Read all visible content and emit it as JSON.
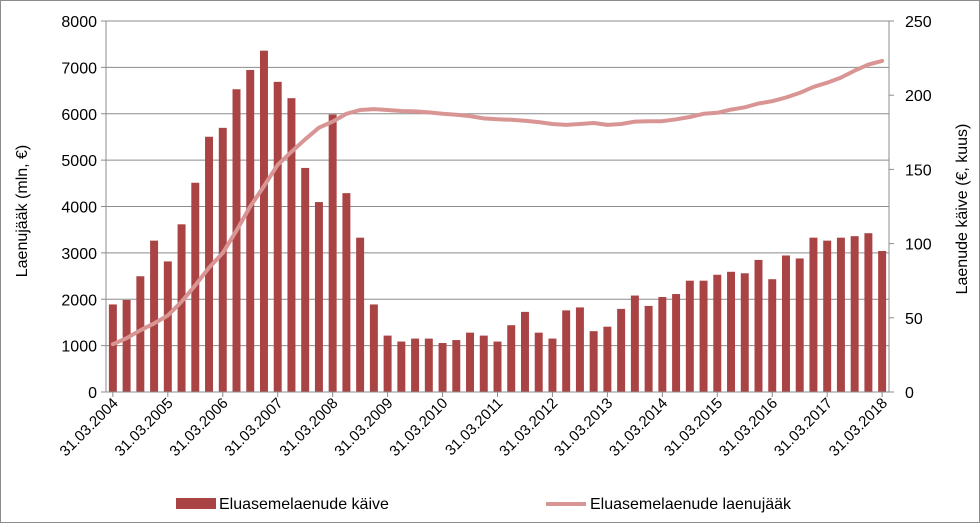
{
  "chart_data": {
    "type": "bar+line",
    "title": "",
    "y_left_label": "Laenujääk (mln, €)",
    "y_right_label": "Laenude käive (€, kuus)",
    "y_left_range": [
      0,
      8000
    ],
    "y_left_ticks": [
      "0",
      "1000",
      "2000",
      "3000",
      "4000",
      "5000",
      "6000",
      "7000",
      "8000"
    ],
    "y_right_range": [
      0,
      250
    ],
    "y_right_ticks": [
      "0",
      "50",
      "100",
      "150",
      "200",
      "250"
    ],
    "grid": true,
    "x_tick_labels": [
      "31.03.2004",
      "31.03.2005",
      "31.03.2006",
      "31.03.2007",
      "31.03.2008",
      "31.03.2009",
      "31.03.2010",
      "31.03.2011",
      "31.03.2012",
      "31.03.2013",
      "31.03.2014",
      "31.03.2015",
      "31.03.2016",
      "31.03.2017",
      "31.03.2018"
    ],
    "x_tick_every_n_points": 4,
    "legend_position": "bottom",
    "series": [
      {
        "name": "Eluasemelaenude käive",
        "type": "bar",
        "axis": "right",
        "color": "#a94344",
        "values": [
          59,
          62,
          78,
          102,
          88,
          113,
          141,
          172,
          178,
          204,
          217,
          230,
          209,
          198,
          151,
          128,
          187,
          134,
          104,
          59,
          38,
          34,
          36,
          36,
          33,
          35,
          40,
          38,
          34,
          45,
          54,
          40,
          36,
          55,
          57,
          41,
          44,
          56,
          65,
          58,
          64,
          66,
          75,
          75,
          79,
          81,
          80,
          89,
          76,
          92,
          90,
          104,
          102,
          104,
          105,
          107,
          95
        ]
      },
      {
        "name": "Eluasemelaenude laenujääk",
        "type": "line",
        "axis": "left",
        "color": "#d99594",
        "values": [
          1030,
          1160,
          1330,
          1480,
          1650,
          1950,
          2300,
          2680,
          3000,
          3480,
          4000,
          4440,
          4900,
          5180,
          5450,
          5700,
          5830,
          6000,
          6080,
          6100,
          6080,
          6060,
          6050,
          6030,
          6000,
          5980,
          5950,
          5900,
          5880,
          5870,
          5850,
          5820,
          5780,
          5760,
          5780,
          5800,
          5760,
          5780,
          5830,
          5840,
          5840,
          5880,
          5930,
          6000,
          6020,
          6090,
          6140,
          6220,
          6270,
          6350,
          6450,
          6580,
          6670,
          6780,
          6930,
          7060,
          7140
        ]
      }
    ]
  }
}
